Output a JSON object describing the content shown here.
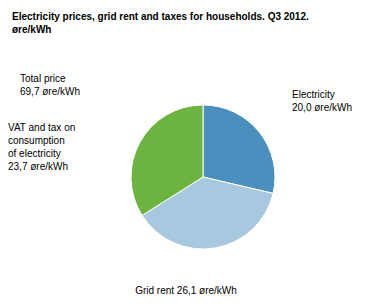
{
  "chart_data": {
    "type": "pie",
    "title": "Electricity prices, grid rent and taxes for households. Q3 2012.\nøre/kWh",
    "values": [
      20.0,
      26.1,
      23.7
    ],
    "colors": [
      "#4a8fbe",
      "#a8c8e0",
      "#6db33f"
    ],
    "annotations": [
      "Total price\n69,7 øre/kWh",
      "VAT and tax on\nconsumption\nof electricity\n23,7 øre/kWh",
      "Electricity\n20,0 øre/kWh",
      "Grid rent 26,1 øre/kWh"
    ]
  }
}
